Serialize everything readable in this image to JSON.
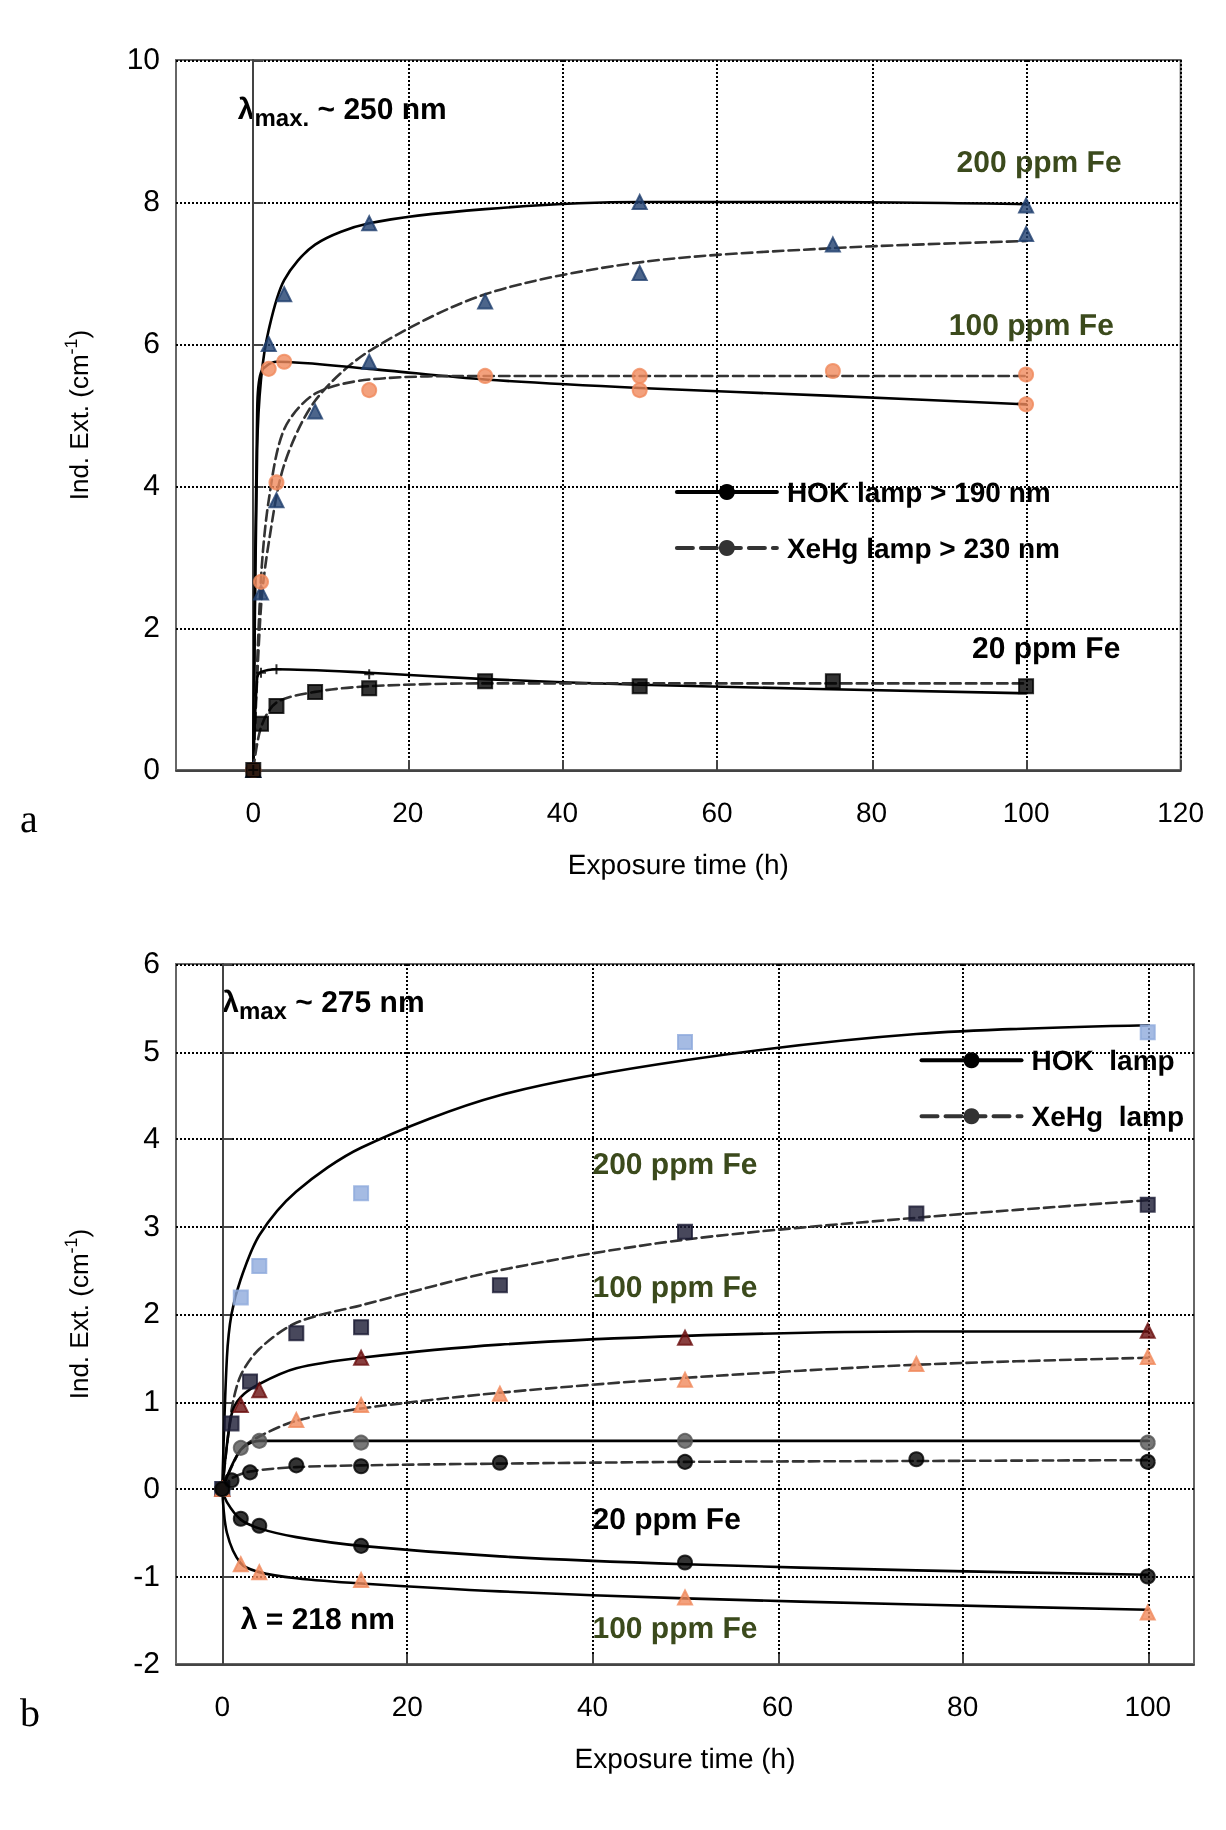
{
  "chart_data": [
    {
      "type": "scatter",
      "xlabel": "Exposure time (h)",
      "ylabel": "Ind. Ext. (cm$^{-1}$)",
      "xlim": [
        -10,
        120
      ],
      "xticks": [
        0,
        20,
        40,
        60,
        80,
        100,
        120
      ],
      "ylim": [
        0,
        10
      ],
      "yticks": [
        0,
        2,
        4,
        6,
        8,
        10
      ],
      "grid": true,
      "legend": "center right",
      "annotations": [
        "λ$_{max.}$ ~ 250 nm",
        "200 ppm Fe",
        "100 ppm Fe",
        "20 ppm Fe",
        "a"
      ],
      "series": [
        {
          "type": "scatter",
          "marker": "triangle",
          "color": "#1f3f6e",
          "x": [
            0,
            2,
            4,
            15,
            50,
            100
          ],
          "values": [
            0,
            6.0,
            6.7,
            7.7,
            8.0,
            7.95
          ]
        },
        {
          "type": "scatter",
          "marker": "triangle",
          "color": "#1f3f6e",
          "x": [
            0,
            1,
            3,
            8,
            15,
            30,
            50,
            75,
            100
          ],
          "values": [
            0,
            2.5,
            3.8,
            5.05,
            5.75,
            6.6,
            7.0,
            7.4,
            7.55
          ]
        },
        {
          "type": "scatter",
          "marker": "circle",
          "color": "#f08a5d",
          "x": [
            0,
            2,
            4,
            50,
            100
          ],
          "values": [
            0,
            5.65,
            5.75,
            5.35,
            5.15
          ]
        },
        {
          "type": "scatter",
          "marker": "circle",
          "color": "#f08a5d",
          "x": [
            0,
            1,
            3,
            15,
            30,
            50,
            75,
            100
          ],
          "values": [
            0,
            2.65,
            4.05,
            5.35,
            5.55,
            5.55,
            5.62,
            5.57
          ]
        },
        {
          "type": "scatter",
          "marker": "cross",
          "color": "#000000",
          "x": [
            0,
            1,
            3,
            15
          ],
          "values": [
            0,
            1.37,
            1.42,
            1.35
          ]
        },
        {
          "type": "scatter",
          "marker": "square",
          "color": "#000000",
          "x": [
            0,
            1,
            3,
            8,
            15,
            30,
            50,
            75,
            100
          ],
          "values": [
            0,
            0.65,
            0.9,
            1.1,
            1.15,
            1.25,
            1.18,
            1.25,
            1.18
          ]
        },
        {
          "type": "line",
          "name": "HOK lamp > 190 nm",
          "color": "#000000",
          "line_style": "solid",
          "marker": "none",
          "x": [
            0,
            0.5,
            1,
            2,
            4,
            8,
            15,
            30,
            50,
            75,
            100
          ],
          "values": [
            0,
            4.5,
            5.5,
            6.2,
            6.9,
            7.4,
            7.7,
            7.9,
            8.0,
            8.0,
            7.97
          ]
        },
        {
          "type": "line",
          "name": "XeHg lamp > 230 nm",
          "color": "#333333",
          "line_style": "dashed",
          "marker": "none",
          "x": [
            0,
            1,
            2,
            4,
            8,
            15,
            30,
            50,
            75,
            100
          ],
          "values": [
            0,
            2.3,
            3.2,
            4.3,
            5.2,
            5.9,
            6.7,
            7.15,
            7.35,
            7.45
          ]
        },
        {
          "type": "line",
          "color": "#000000",
          "line_style": "solid",
          "marker": "none",
          "x": [
            0,
            0.5,
            1,
            3,
            15,
            30,
            50,
            75,
            100
          ],
          "values": [
            0,
            5.0,
            5.6,
            5.75,
            5.65,
            5.5,
            5.38,
            5.27,
            5.15
          ]
        },
        {
          "type": "line",
          "color": "#333333",
          "line_style": "dashed",
          "marker": "none",
          "x": [
            0,
            1,
            2,
            4,
            8,
            15,
            30,
            50,
            100
          ],
          "values": [
            0,
            2.7,
            3.8,
            4.8,
            5.3,
            5.5,
            5.55,
            5.55,
            5.55
          ]
        },
        {
          "type": "line",
          "color": "#000000",
          "line_style": "solid",
          "marker": "none",
          "x": [
            0,
            0.5,
            1,
            3,
            15,
            30,
            50,
            100
          ],
          "values": [
            0,
            1.3,
            1.38,
            1.42,
            1.37,
            1.28,
            1.2,
            1.08
          ]
        },
        {
          "type": "line",
          "color": "#333333",
          "line_style": "dashed",
          "marker": "none",
          "x": [
            0,
            1,
            3,
            8,
            15,
            30,
            50,
            100
          ],
          "values": [
            0,
            0.6,
            0.95,
            1.1,
            1.18,
            1.22,
            1.22,
            1.22
          ]
        }
      ]
    },
    {
      "type": "scatter",
      "xlabel": "Exposure time (h)",
      "ylabel": "Ind. Ext. (cm$^{-1}$)",
      "xlim": [
        -5,
        105
      ],
      "xticks": [
        0,
        20,
        40,
        60,
        80,
        100
      ],
      "ylim": [
        -2,
        6
      ],
      "yticks": [
        -2,
        -1,
        0,
        1,
        2,
        3,
        4,
        5,
        6
      ],
      "grid": true,
      "legend": "top right",
      "annotations": [
        "λ$_{max}$ ~ 275 nm",
        "200 ppm Fe",
        "100 ppm Fe",
        "20 ppm Fe",
        "100 ppm Fe",
        "λ = 218 nm",
        "b"
      ],
      "series": [
        {
          "type": "scatter",
          "marker": "square",
          "color": "#8faadc",
          "x": [
            0,
            2,
            4,
            15,
            50,
            100
          ],
          "values": [
            0,
            2.19,
            2.55,
            3.38,
            5.11,
            5.22
          ]
        },
        {
          "type": "scatter",
          "marker": "square",
          "color": "#1a1a33",
          "x": [
            0,
            1,
            3,
            8,
            15,
            30,
            50,
            75,
            100
          ],
          "values": [
            0,
            0.75,
            1.23,
            1.78,
            1.85,
            2.33,
            2.94,
            3.15,
            3.25
          ]
        },
        {
          "type": "scatter",
          "marker": "triangle",
          "color": "#6b0f0f",
          "x": [
            0,
            2,
            4,
            15,
            50,
            100
          ],
          "values": [
            0,
            0.96,
            1.13,
            1.5,
            1.73,
            1.81
          ]
        },
        {
          "type": "scatter",
          "marker": "triangle",
          "color": "#f08a5d",
          "x": [
            0,
            8,
            15,
            30,
            50,
            75,
            100
          ],
          "values": [
            0,
            0.79,
            0.96,
            1.09,
            1.25,
            1.43,
            1.51
          ]
        },
        {
          "type": "scatter",
          "marker": "circle",
          "color": "#555555",
          "x": [
            0,
            2,
            4,
            15,
            50,
            100
          ],
          "values": [
            0,
            0.47,
            0.55,
            0.53,
            0.55,
            0.53
          ]
        },
        {
          "type": "scatter",
          "marker": "circle",
          "color": "#000000",
          "x": [
            0,
            1,
            3,
            8,
            15,
            30,
            50,
            75,
            100
          ],
          "values": [
            0,
            0.1,
            0.19,
            0.27,
            0.26,
            0.3,
            0.31,
            0.34,
            0.31
          ]
        },
        {
          "type": "scatter",
          "marker": "circle",
          "color": "#000000",
          "x": [
            2,
            4,
            15,
            50,
            100
          ],
          "values": [
            -0.34,
            -0.42,
            -0.65,
            -0.84,
            -1.0
          ]
        },
        {
          "type": "scatter",
          "marker": "triangle",
          "color": "#f08a5d",
          "x": [
            2,
            4,
            15,
            50,
            100
          ],
          "values": [
            -0.86,
            -0.95,
            -1.04,
            -1.24,
            -1.41
          ]
        },
        {
          "type": "line",
          "name": "HOK  lamp",
          "color": "#000000",
          "line_style": "solid",
          "marker": "none",
          "x": [
            0,
            0.5,
            1,
            2,
            4,
            8,
            15,
            30,
            50,
            75,
            100
          ],
          "values": [
            0,
            1.5,
            2.0,
            2.4,
            2.9,
            3.4,
            3.9,
            4.5,
            4.9,
            5.2,
            5.3
          ]
        },
        {
          "type": "line",
          "name": "XeHg  lamp",
          "color": "#333333",
          "line_style": "dashed",
          "marker": "none",
          "x": [
            0,
            1,
            2,
            4,
            8,
            15,
            30,
            50,
            75,
            100
          ],
          "values": [
            0,
            0.9,
            1.3,
            1.6,
            1.9,
            2.1,
            2.5,
            2.85,
            3.1,
            3.3
          ]
        },
        {
          "type": "line",
          "color": "#000000",
          "line_style": "solid",
          "marker": "none",
          "x": [
            0,
            1,
            2,
            4,
            8,
            15,
            30,
            50,
            75,
            100
          ],
          "values": [
            0,
            0.85,
            1.05,
            1.2,
            1.38,
            1.5,
            1.65,
            1.75,
            1.8,
            1.8
          ]
        },
        {
          "type": "line",
          "color": "#333333",
          "line_style": "dashed",
          "marker": "none",
          "x": [
            0,
            2,
            4,
            8,
            15,
            30,
            50,
            75,
            100
          ],
          "values": [
            0,
            0.45,
            0.6,
            0.78,
            0.92,
            1.1,
            1.27,
            1.42,
            1.5
          ]
        },
        {
          "type": "line",
          "color": "#000000",
          "line_style": "solid",
          "marker": "none",
          "x": [
            0,
            2,
            4,
            15,
            50,
            100
          ],
          "values": [
            0,
            0.45,
            0.55,
            0.55,
            0.55,
            0.55
          ]
        },
        {
          "type": "line",
          "color": "#333333",
          "line_style": "dashed",
          "marker": "none",
          "x": [
            0,
            1,
            3,
            8,
            15,
            30,
            50,
            75,
            100
          ],
          "values": [
            0,
            0.12,
            0.2,
            0.25,
            0.27,
            0.29,
            0.31,
            0.32,
            0.33
          ]
        },
        {
          "type": "line",
          "color": "#000000",
          "line_style": "solid",
          "marker": "none",
          "x": [
            0,
            0.5,
            2,
            4,
            8,
            15,
            30,
            50,
            75,
            100
          ],
          "values": [
            0,
            -0.15,
            -0.35,
            -0.45,
            -0.55,
            -0.65,
            -0.77,
            -0.86,
            -0.93,
            -0.98
          ]
        },
        {
          "type": "line",
          "color": "#000000",
          "line_style": "solid",
          "marker": "none",
          "x": [
            0,
            0.5,
            2,
            4,
            8,
            15,
            30,
            50,
            75,
            100
          ],
          "values": [
            0,
            -0.5,
            -0.85,
            -0.95,
            -1.02,
            -1.08,
            -1.17,
            -1.25,
            -1.32,
            -1.38
          ]
        }
      ]
    }
  ]
}
